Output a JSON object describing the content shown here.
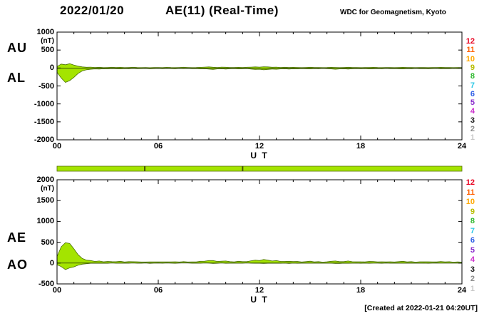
{
  "header": {
    "date": "2022/01/20",
    "title": "AE(11) (Real-Time)",
    "source": "WDC for Geomagnetism, Kyoto"
  },
  "footer": {
    "created": "[Created at 2022-01-21 04:20UT]"
  },
  "stations": [
    {
      "label": "12",
      "color": "#e8001f"
    },
    {
      "label": "11",
      "color": "#ff5f00"
    },
    {
      "label": "10",
      "color": "#ffa800"
    },
    {
      "label": "9",
      "color": "#b8bc00"
    },
    {
      "label": "8",
      "color": "#2eb82e"
    },
    {
      "label": "7",
      "color": "#2ec8e6"
    },
    {
      "label": "6",
      "color": "#2e5fe6"
    },
    {
      "label": "5",
      "color": "#8a2ecc"
    },
    {
      "label": "4",
      "color": "#cc2ecc"
    },
    {
      "label": "3",
      "color": "#1a1a1a"
    },
    {
      "label": "2",
      "color": "#8c8c8c"
    },
    {
      "label": "1",
      "color": "#c8c8c8"
    }
  ],
  "chart_data": {
    "type": "area",
    "title": "AE(11) (Real-Time)",
    "date": "2022/01/20",
    "xlabel": "U T",
    "xticks": [
      "00",
      "06",
      "12",
      "18",
      "24"
    ],
    "xlim": [
      0,
      24
    ],
    "x_step": 0.25,
    "colors": {
      "trace_fill": "#a4e400",
      "trace_stroke": "#4a7000"
    },
    "bar_gap_hours": [
      5.2,
      11.0
    ],
    "panels": [
      {
        "id": "aual",
        "name": "AU AL panel",
        "ylim": [
          -2000,
          1000
        ],
        "yticks": [
          1000,
          500,
          0,
          -500,
          -1000,
          -1500,
          -2000
        ],
        "unit": "(nT)",
        "left_labels": [
          "AU",
          "AL"
        ],
        "series": [
          "au",
          "al"
        ]
      },
      {
        "id": "aeao",
        "name": "AE AO panel",
        "ylim": [
          -500,
          2000
        ],
        "yticks": [
          2000,
          1500,
          1000,
          500,
          0,
          -500
        ],
        "unit": "(nT)",
        "left_labels": [
          "AE",
          "AO"
        ],
        "series": [
          "ae",
          "ao"
        ]
      }
    ],
    "series": {
      "au": [
        40,
        110,
        90,
        120,
        80,
        50,
        30,
        20,
        25,
        15,
        20,
        10,
        15,
        20,
        12,
        18,
        10,
        15,
        20,
        12,
        10,
        15,
        8,
        12,
        15,
        10,
        18,
        12,
        10,
        14,
        20,
        15,
        10,
        12,
        18,
        25,
        30,
        20,
        15,
        25,
        20,
        15,
        12,
        18,
        15,
        20,
        25,
        30,
        25,
        35,
        30,
        20,
        25,
        15,
        20,
        12,
        18,
        15,
        10,
        15,
        20,
        12,
        15,
        10,
        12,
        18,
        15,
        10,
        15,
        20,
        12,
        15,
        10,
        12,
        15,
        18,
        12,
        10,
        15,
        12,
        10,
        15,
        18,
        12,
        15,
        10,
        12,
        15,
        10,
        12,
        15,
        18,
        12,
        15,
        10,
        12,
        10
      ],
      "al": [
        -120,
        -280,
        -400,
        -350,
        -260,
        -150,
        -80,
        -50,
        -35,
        -25,
        -30,
        -20,
        -25,
        -15,
        -20,
        -25,
        -15,
        -20,
        -12,
        -18,
        -15,
        -10,
        -20,
        -15,
        -12,
        -18,
        -10,
        -15,
        -20,
        -12,
        -15,
        -10,
        -18,
        -15,
        -25,
        -20,
        -30,
        -40,
        -25,
        -20,
        -30,
        -20,
        -15,
        -25,
        -20,
        -15,
        -30,
        -40,
        -35,
        -50,
        -40,
        -30,
        -35,
        -25,
        -20,
        -30,
        -20,
        -25,
        -15,
        -20,
        -25,
        -15,
        -20,
        -12,
        -18,
        -25,
        -35,
        -25,
        -20,
        -30,
        -20,
        -15,
        -20,
        -15,
        -25,
        -20,
        -15,
        -20,
        -12,
        -18,
        -15,
        -20,
        -25,
        -15,
        -20,
        -12,
        -18,
        -15,
        -20,
        -15,
        -12,
        -20,
        -15,
        -18,
        -12,
        -15,
        -12
      ],
      "ae": [
        160,
        390,
        490,
        470,
        340,
        200,
        110,
        70,
        60,
        40,
        50,
        30,
        40,
        35,
        32,
        43,
        25,
        35,
        32,
        30,
        25,
        25,
        28,
        27,
        27,
        28,
        28,
        27,
        30,
        26,
        35,
        25,
        28,
        27,
        43,
        45,
        60,
        60,
        40,
        45,
        50,
        35,
        27,
        43,
        35,
        35,
        55,
        70,
        60,
        85,
        70,
        50,
        60,
        40,
        40,
        42,
        38,
        40,
        25,
        35,
        45,
        27,
        35,
        22,
        30,
        43,
        50,
        35,
        35,
        50,
        32,
        30,
        30,
        27,
        40,
        38,
        27,
        30,
        27,
        30,
        25,
        35,
        43,
        27,
        35,
        22,
        30,
        30,
        30,
        27,
        27,
        38,
        27,
        33,
        22,
        27,
        22
      ],
      "ao": [
        -40,
        -85,
        -155,
        -115,
        -90,
        -50,
        -25,
        -15,
        -5,
        -5,
        -5,
        -5,
        -5,
        3,
        -4,
        -4,
        -3,
        -3,
        4,
        -3,
        -3,
        3,
        -6,
        -2,
        2,
        -4,
        4,
        -2,
        -5,
        1,
        3,
        3,
        -4,
        -2,
        -4,
        3,
        0,
        -10,
        -5,
        3,
        -5,
        -3,
        -2,
        -4,
        -3,
        3,
        -3,
        -5,
        -5,
        -8,
        -5,
        -5,
        -5,
        -5,
        0,
        -9,
        -1,
        -5,
        -3,
        -3,
        -3,
        -2,
        -3,
        -1,
        -3,
        -4,
        -10,
        -8,
        -3,
        -5,
        -4,
        0,
        -5,
        -2,
        -5,
        -1,
        -2,
        -5,
        2,
        -3,
        -3,
        -3,
        -4,
        -2,
        -3,
        -1,
        -3,
        0,
        -5,
        -2,
        2,
        -1,
        -2,
        -2,
        -1,
        -2,
        -1
      ]
    }
  }
}
